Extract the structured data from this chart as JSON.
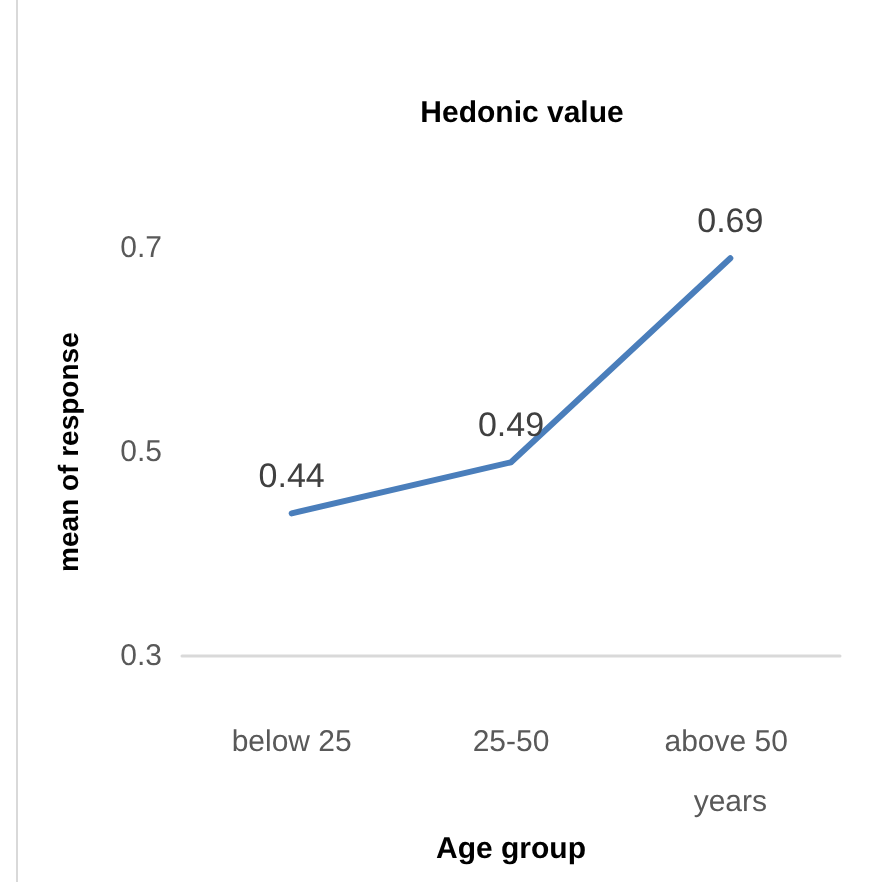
{
  "chart_data": {
    "type": "line",
    "title": "Hedonic value",
    "xlabel": "Age group",
    "ylabel": "mean of response",
    "categories": [
      "below 25",
      "25-50",
      "above 50 years"
    ],
    "series": [
      {
        "color": "#4a7ebb",
        "values": [
          0.44,
          0.49,
          0.69
        ]
      }
    ],
    "ylim": [
      0.3,
      0.7
    ],
    "yticks": [
      0.3,
      0.5,
      0.7
    ],
    "data_labels": true,
    "marker": "none",
    "grid": false,
    "line_style": "solid"
  }
}
